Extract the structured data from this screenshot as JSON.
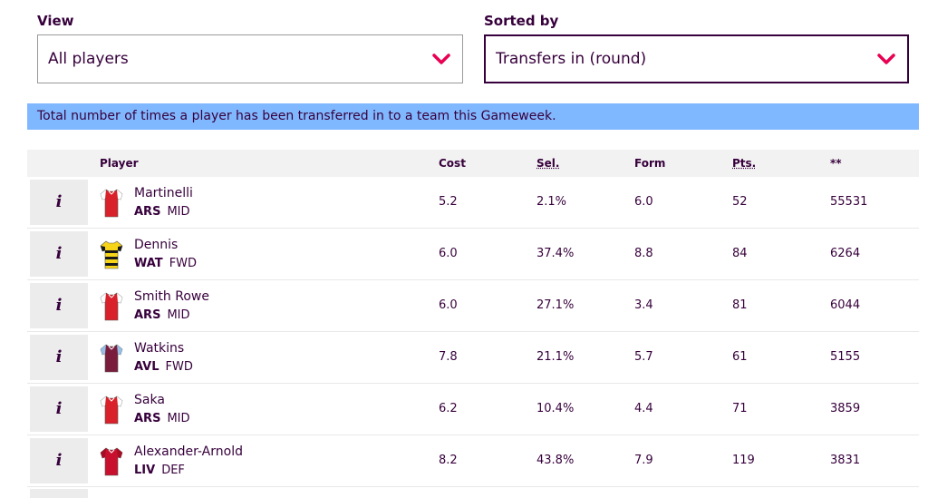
{
  "filters": {
    "view": {
      "label": "View",
      "selected": "All players"
    },
    "sort": {
      "label": "Sorted by",
      "selected": "Transfers in (round)"
    }
  },
  "info_text": "Total number of times a player has been transferred in to a team this Gameweek.",
  "table": {
    "headers": {
      "player": "Player",
      "cost": "Cost",
      "sel": "Sel.",
      "form": "Form",
      "pts": "Pts.",
      "transfers": "**"
    },
    "info_button_label": "i",
    "rows": [
      {
        "name": "Martinelli",
        "team": "ARS",
        "pos": "MID",
        "cost": "5.2",
        "sel": "2.1%",
        "form": "6.0",
        "pts": "52",
        "transfers": "55531",
        "kit": "ars"
      },
      {
        "name": "Dennis",
        "team": "WAT",
        "pos": "FWD",
        "cost": "6.0",
        "sel": "37.4%",
        "form": "8.8",
        "pts": "84",
        "transfers": "6264",
        "kit": "wat"
      },
      {
        "name": "Smith Rowe",
        "team": "ARS",
        "pos": "MID",
        "cost": "6.0",
        "sel": "27.1%",
        "form": "3.4",
        "pts": "81",
        "transfers": "6044",
        "kit": "ars"
      },
      {
        "name": "Watkins",
        "team": "AVL",
        "pos": "FWD",
        "cost": "7.8",
        "sel": "21.1%",
        "form": "5.7",
        "pts": "61",
        "transfers": "5155",
        "kit": "avl"
      },
      {
        "name": "Saka",
        "team": "ARS",
        "pos": "MID",
        "cost": "6.2",
        "sel": "10.4%",
        "form": "4.4",
        "pts": "71",
        "transfers": "3859",
        "kit": "ars"
      },
      {
        "name": "Alexander-Arnold",
        "team": "LIV",
        "pos": "DEF",
        "cost": "8.2",
        "sel": "43.8%",
        "form": "7.9",
        "pts": "119",
        "transfers": "3831",
        "kit": "liv"
      }
    ]
  },
  "colors": {
    "brand": "#37003c",
    "accent": "#e90052",
    "info_bar": "#80b8ff",
    "ars_body": "#d8212a",
    "ars_sleeve": "#ffffff",
    "wat_body": "#f7d417",
    "wat_stripe": "#1a1a1a",
    "avl_body": "#7a1d3c",
    "avl_sleeve": "#95bfe5",
    "liv_body": "#c8102e",
    "liv_sleeve": "#a50d24"
  }
}
